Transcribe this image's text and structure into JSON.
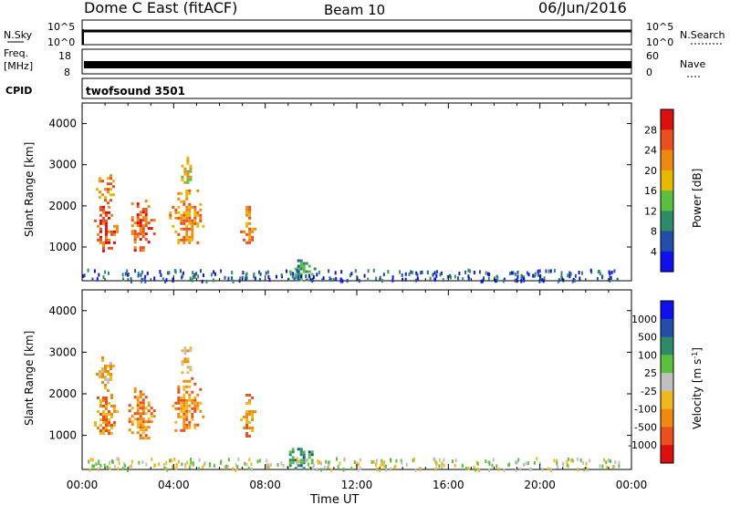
{
  "header": {
    "title": "Dome C East (fitACF)",
    "beam": "Beam 10",
    "date": "06/Jun/2016"
  },
  "noise_panel": {
    "left_label": "N.Sky",
    "right_label": "N.Search",
    "left_ticks": [
      "10^5",
      "10^0"
    ],
    "right_ticks": [
      "10^5",
      "10^0"
    ]
  },
  "freq_panel": {
    "left_label_1": "Freq.",
    "left_label_2": "[MHz]",
    "right_label": "Nave",
    "left_ticks": [
      "18",
      "8"
    ],
    "right_ticks": [
      "60",
      "0"
    ]
  },
  "cpid_panel": {
    "label": "CPID",
    "value": "twofsound 3501"
  },
  "chart_data": [
    {
      "type": "heatmap",
      "panel": "power",
      "ylabel": "Slant Range [km]",
      "xlabel": "Time UT",
      "xlim": [
        "00:00",
        "24:00"
      ],
      "ylim": [
        180,
        4500
      ],
      "y_ticks": [
        "1000",
        "2000",
        "3000",
        "4000"
      ],
      "x_ticks": [
        "00:00",
        "04:00",
        "08:00",
        "12:00",
        "16:00",
        "20:00",
        "00:00"
      ],
      "colorbar": {
        "label": "Power [dB]",
        "ticks": [
          "4",
          "8",
          "12",
          "16",
          "20",
          "24",
          "28"
        ],
        "colors": [
          "#1010ee",
          "#1f4fa8",
          "#2f8a6a",
          "#5bc040",
          "#e8b800",
          "#ef8a10",
          "#e85020",
          "#dd1010"
        ]
      },
      "echo_regions": [
        {
          "t_start": 0.4,
          "t_end": 1.5,
          "r_low": 900,
          "r_high": 2000,
          "level": 24
        },
        {
          "t_start": 0.6,
          "t_end": 1.4,
          "r_low": 2100,
          "r_high": 2900,
          "level": 20
        },
        {
          "t_start": 1.9,
          "t_end": 3.1,
          "r_low": 900,
          "r_high": 2150,
          "level": 24
        },
        {
          "t_start": 3.8,
          "t_end": 5.3,
          "r_low": 1100,
          "r_high": 2400,
          "level": 22
        },
        {
          "t_start": 4.2,
          "t_end": 4.8,
          "r_low": 2500,
          "r_high": 3200,
          "level": 16
        },
        {
          "t_start": 6.9,
          "t_end": 7.5,
          "r_low": 1000,
          "r_high": 2000,
          "level": 22
        },
        {
          "t_start": 8.8,
          "t_end": 10.2,
          "r_low": 200,
          "r_high": 700,
          "level": 8
        }
      ]
    },
    {
      "type": "heatmap",
      "panel": "velocity",
      "ylabel": "Slant Range [km]",
      "xlabel": "Time UT",
      "xlim": [
        "00:00",
        "24:00"
      ],
      "ylim": [
        180,
        4500
      ],
      "y_ticks": [
        "1000",
        "2000",
        "3000",
        "4000"
      ],
      "x_ticks": [
        "00:00",
        "04:00",
        "08:00",
        "12:00",
        "16:00",
        "20:00",
        "00:00"
      ],
      "colorbar": {
        "label": "Velocity [m s",
        "label_sup": "-1",
        "label_end": "]",
        "ticks": [
          "1000",
          "500",
          "100",
          "25",
          "-25",
          "-100",
          "-500",
          "-1000"
        ],
        "colors": [
          "#1010ee",
          "#1f4fa8",
          "#2f8a6a",
          "#5bc040",
          "#c0c0c0",
          "#f0b820",
          "#ef8a10",
          "#e85020",
          "#dd1010"
        ]
      },
      "echo_regions": [
        {
          "t_start": 0.4,
          "t_end": 1.5,
          "r_low": 900,
          "r_high": 2000,
          "level": -500
        },
        {
          "t_start": 0.6,
          "t_end": 1.4,
          "r_low": 2100,
          "r_high": 2900,
          "level": -100
        },
        {
          "t_start": 1.9,
          "t_end": 3.1,
          "r_low": 900,
          "r_high": 2150,
          "level": -500
        },
        {
          "t_start": 3.8,
          "t_end": 5.3,
          "r_low": 1100,
          "r_high": 2400,
          "level": -500
        },
        {
          "t_start": 4.2,
          "t_end": 4.8,
          "r_low": 2500,
          "r_high": 3200,
          "level": -100
        },
        {
          "t_start": 6.9,
          "t_end": 7.5,
          "r_low": 1000,
          "r_high": 2000,
          "level": -500
        },
        {
          "t_start": 8.8,
          "t_end": 10.2,
          "r_low": 200,
          "r_high": 700,
          "level": 100
        }
      ]
    }
  ],
  "x_axis": {
    "label": "Time UT",
    "ticks": [
      "00:00",
      "04:00",
      "08:00",
      "12:00",
      "16:00",
      "20:00",
      "00:00"
    ]
  }
}
